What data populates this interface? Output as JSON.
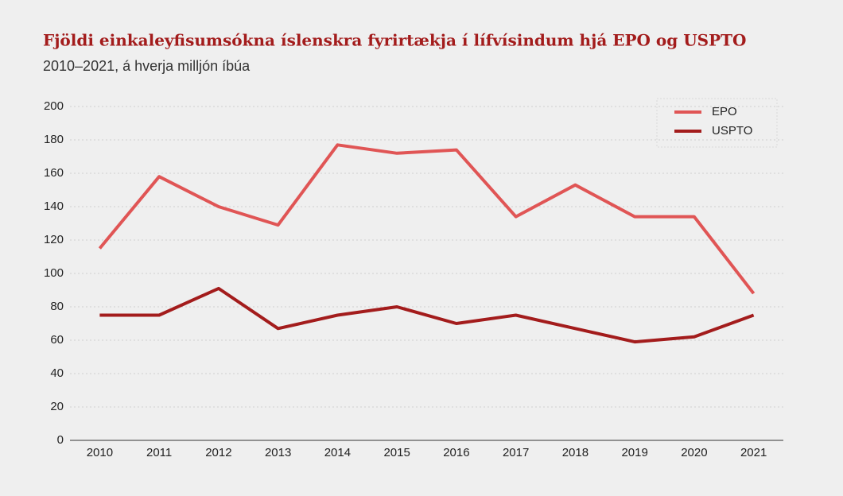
{
  "chart_data": {
    "type": "line",
    "title": "Fjöldi einkaleyfisumsókna íslenskra fyrirtækja í lífvísindum hjá EPO og USPTO",
    "subtitle": "2010–2021, á hverja milljón íbúa",
    "categories": [
      "2010",
      "2011",
      "2012",
      "2013",
      "2014",
      "2015",
      "2016",
      "2017",
      "2018",
      "2019",
      "2020",
      "2021"
    ],
    "series": [
      {
        "name": "EPO",
        "color": "#e05555",
        "values": [
          115,
          158,
          140,
          129,
          177,
          172,
          174,
          134,
          153,
          134,
          134,
          88
        ]
      },
      {
        "name": "USPTO",
        "color": "#a31c1c",
        "values": [
          75,
          75,
          91,
          67,
          75,
          80,
          70,
          75,
          67,
          59,
          62,
          75
        ]
      }
    ],
    "ylim": [
      0,
      200
    ],
    "yticks": [
      0,
      20,
      40,
      60,
      80,
      100,
      120,
      140,
      160,
      180,
      200
    ],
    "grid": true,
    "legend": "upper right"
  }
}
